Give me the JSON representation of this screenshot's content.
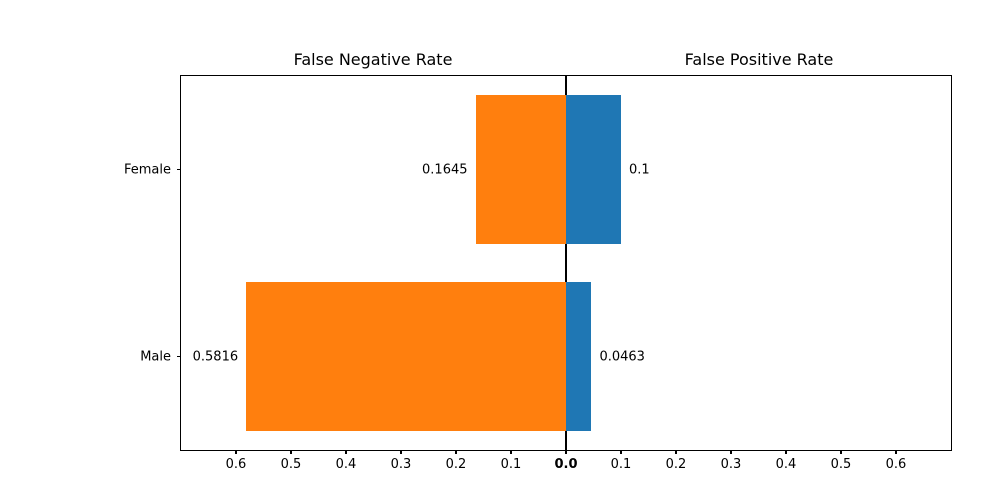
{
  "chart_data": {
    "type": "bar",
    "variant": "diverging-horizontal",
    "titles": {
      "left": "False Negative Rate",
      "right": "False Positive Rate"
    },
    "categories": [
      "Female",
      "Male"
    ],
    "series": [
      {
        "name": "False Negative Rate",
        "side": "left",
        "color": "#ff7f0e",
        "values": [
          0.1645,
          0.5816
        ],
        "value_labels": [
          "0.1645",
          "0.5816"
        ]
      },
      {
        "name": "False Positive Rate",
        "side": "right",
        "color": "#1f77b4",
        "values": [
          0.1,
          0.0463
        ],
        "value_labels": [
          "0.1",
          "0.0463"
        ]
      }
    ],
    "xticks": [
      {
        "value": -0.6,
        "label": "0.6"
      },
      {
        "value": -0.5,
        "label": "0.5"
      },
      {
        "value": -0.4,
        "label": "0.4"
      },
      {
        "value": -0.3,
        "label": "0.3"
      },
      {
        "value": -0.2,
        "label": "0.2"
      },
      {
        "value": -0.1,
        "label": "0.1"
      },
      {
        "value": 0.0,
        "label": "0.0",
        "bold": true
      },
      {
        "value": 0.1,
        "label": "0.1"
      },
      {
        "value": 0.2,
        "label": "0.2"
      },
      {
        "value": 0.3,
        "label": "0.3"
      },
      {
        "value": 0.4,
        "label": "0.4"
      },
      {
        "value": 0.5,
        "label": "0.5"
      },
      {
        "value": 0.6,
        "label": "0.6"
      }
    ],
    "xlim_per_side": 0.7,
    "bar_height_frac": 0.8,
    "grid": false,
    "legend": "none",
    "axis_color": "#000000",
    "text_color": "#000000",
    "background": "#ffffff"
  }
}
